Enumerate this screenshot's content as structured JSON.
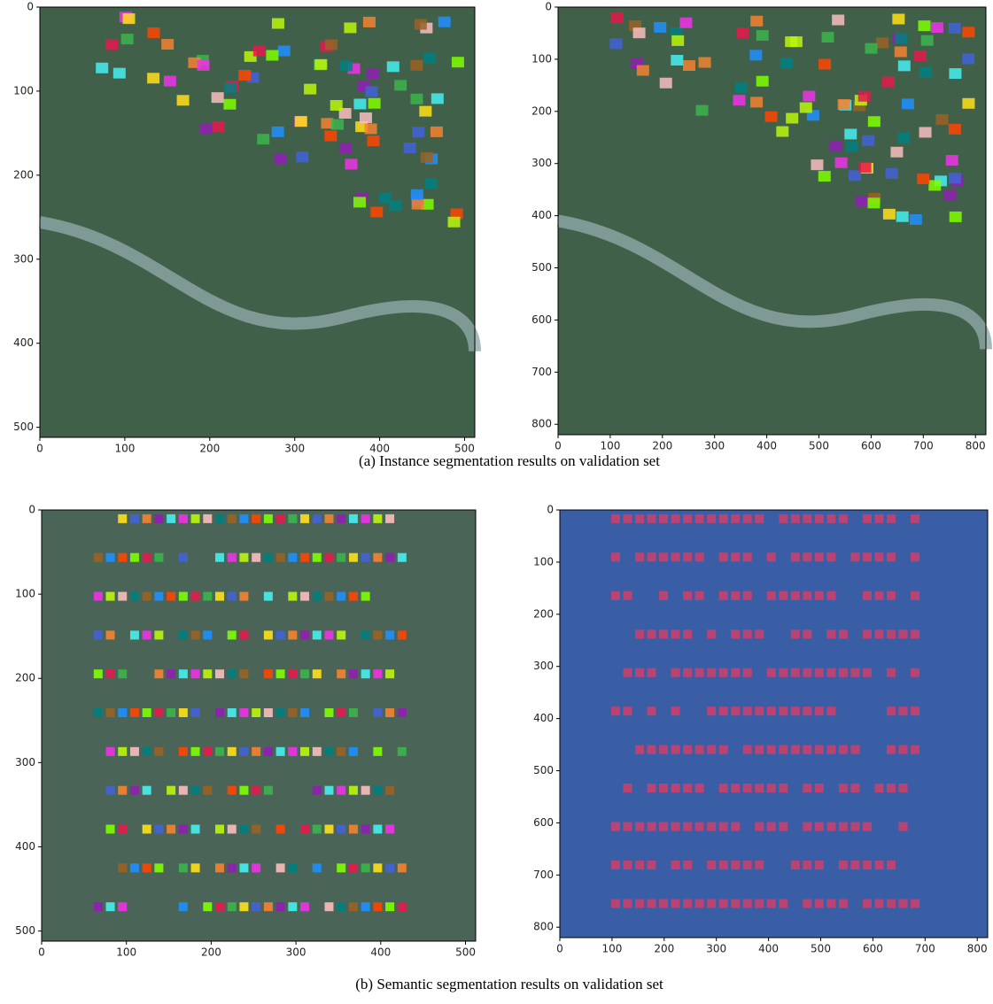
{
  "panels": [
    {
      "xlim": [
        0,
        512
      ],
      "ylim": [
        0,
        512
      ],
      "xticks": [
        0,
        100,
        200,
        300,
        400,
        500
      ],
      "yticks": [
        0,
        100,
        200,
        300,
        400,
        500
      ]
    },
    {
      "xlim": [
        0,
        820
      ],
      "ylim": [
        0,
        820
      ],
      "xticks": [
        0,
        100,
        200,
        300,
        400,
        500,
        600,
        700,
        800
      ],
      "yticks": [
        0,
        100,
        200,
        300,
        400,
        500,
        600,
        700,
        800
      ]
    },
    {
      "xlim": [
        0,
        512
      ],
      "ylim": [
        0,
        512
      ],
      "xticks": [
        0,
        100,
        200,
        300,
        400,
        500
      ],
      "yticks": [
        0,
        100,
        200,
        300,
        400,
        500
      ]
    },
    {
      "xlim": [
        0,
        820
      ],
      "ylim": [
        0,
        820
      ],
      "xticks": [
        0,
        100,
        200,
        300,
        400,
        500,
        600,
        700,
        800
      ],
      "yticks": [
        0,
        100,
        200,
        300,
        400,
        500,
        600,
        700,
        800
      ]
    }
  ],
  "captions": [
    "(a) Instance segmentation results on validation set",
    "(b) Semantic segmentation results on validation set"
  ]
}
